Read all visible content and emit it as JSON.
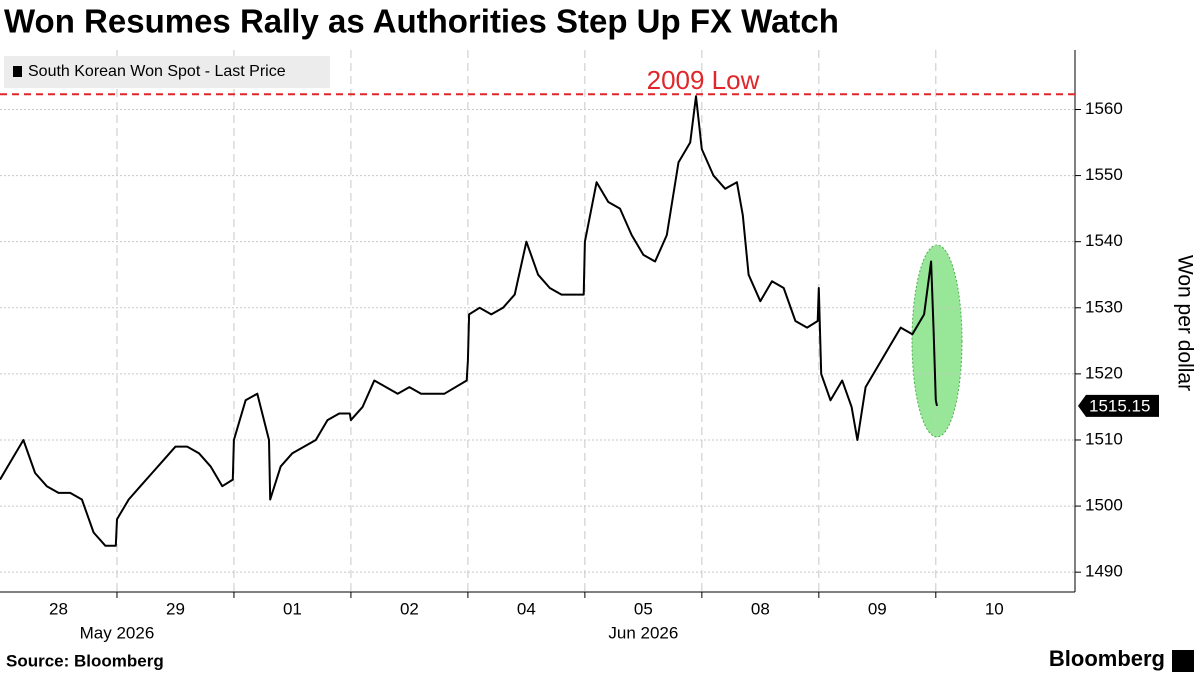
{
  "chart_data": {
    "type": "line",
    "title": "Won Resumes Rally as Authorities Step Up FX Watch",
    "y_label": "Won per dollar",
    "source": "Source: Bloomberg",
    "brand": "Bloomberg",
    "xlim": [
      0,
      9.19
    ],
    "ylim": [
      1487,
      1569
    ],
    "yticks": [
      1490,
      1500,
      1510,
      1520,
      1530,
      1540,
      1550,
      1560
    ],
    "xticks": [
      {
        "value": 0.5,
        "label": "28"
      },
      {
        "value": 1.5,
        "label": "29"
      },
      {
        "value": 2.5,
        "label": "01"
      },
      {
        "value": 3.5,
        "label": "02"
      },
      {
        "value": 4.5,
        "label": "04"
      },
      {
        "value": 5.5,
        "label": "05"
      },
      {
        "value": 6.5,
        "label": "08"
      },
      {
        "value": 7.5,
        "label": "09"
      },
      {
        "value": 8.5,
        "label": "10"
      }
    ],
    "month_labels": [
      {
        "value": 1,
        "label": "May 2026"
      },
      {
        "value": 5.5,
        "label": "Jun 2026"
      }
    ],
    "grid": true,
    "reference_line": {
      "value": 1562.3,
      "label": "2009 Low",
      "color": "#e0262a"
    },
    "series": [
      {
        "name": "South Korean Won Spot - Last Price",
        "color": "#000000",
        "x": [
          0.0,
          0.1,
          0.2,
          0.3,
          0.4,
          0.5,
          0.6,
          0.7,
          0.8,
          0.9,
          0.99,
          1.0,
          1.1,
          1.2,
          1.3,
          1.4,
          1.5,
          1.6,
          1.7,
          1.8,
          1.9,
          1.99,
          2.0,
          2.1,
          2.2,
          2.3,
          2.31,
          2.4,
          2.5,
          2.6,
          2.7,
          2.8,
          2.9,
          2.99,
          3.0,
          3.1,
          3.2,
          3.3,
          3.4,
          3.5,
          3.6,
          3.7,
          3.8,
          3.99,
          4.0,
          4.01,
          4.1,
          4.2,
          4.3,
          4.4,
          4.5,
          4.6,
          4.7,
          4.8,
          4.9,
          4.99,
          5.0,
          5.1,
          5.2,
          5.3,
          5.4,
          5.5,
          5.6,
          5.7,
          5.8,
          5.9,
          5.95,
          6.0,
          6.1,
          6.2,
          6.3,
          6.35,
          6.4,
          6.5,
          6.6,
          6.7,
          6.8,
          6.9,
          6.99,
          7.0,
          7.02,
          7.1,
          7.2,
          7.28,
          7.33,
          7.4,
          7.5,
          7.6,
          7.7,
          7.8,
          7.9,
          7.96,
          7.98,
          8.0,
          8.01
        ],
        "values": [
          1504,
          1507,
          1510,
          1505,
          1503,
          1502,
          1502,
          1501,
          1496,
          1494,
          1494,
          1498,
          1501,
          1503,
          1505,
          1507,
          1509,
          1509,
          1508,
          1506,
          1503,
          1504,
          1510,
          1516,
          1517,
          1510,
          1501,
          1506,
          1508,
          1509,
          1510,
          1513,
          1514,
          1514,
          1513,
          1515,
          1519,
          1518,
          1517,
          1518,
          1517,
          1517,
          1517,
          1519,
          1522,
          1529,
          1530,
          1529,
          1530,
          1532,
          1540,
          1535,
          1533,
          1532,
          1532,
          1532,
          1540,
          1549,
          1546,
          1545,
          1541,
          1538,
          1537,
          1541,
          1552,
          1555,
          1562,
          1554,
          1550,
          1548,
          1549,
          1544,
          1535,
          1531,
          1534,
          1533,
          1528,
          1527,
          1528,
          1533,
          1520,
          1516,
          1519,
          1515,
          1510,
          1518,
          1521,
          1524,
          1527,
          1526,
          1529,
          1537,
          1527,
          1516,
          1515.15
        ]
      }
    ]
  }
}
